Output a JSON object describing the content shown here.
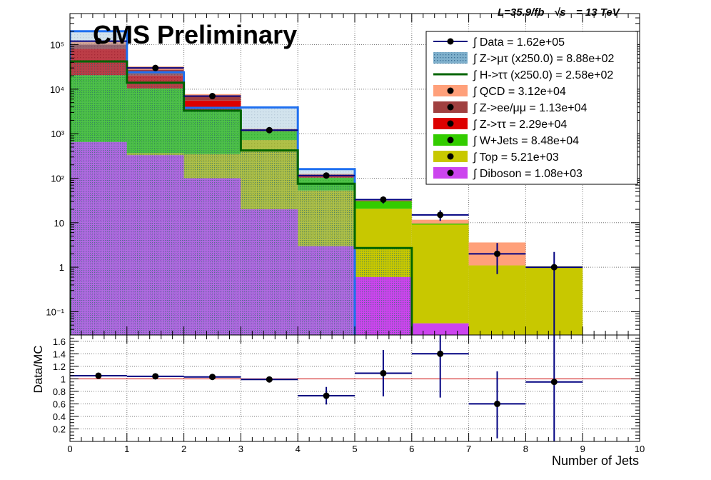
{
  "header": {
    "cms": "CMS Preliminary",
    "lumi": "L=35.9/fb",
    "sqrt": "√s",
    "energy": "= 13 TeV"
  },
  "chart_data": [
    {
      "type": "bar",
      "subtype": "stacked-histogram",
      "y_scale": "log",
      "ylim": [
        0.03,
        500000
      ],
      "xlim": [
        0,
        10
      ],
      "bins": [
        0,
        1,
        2,
        3,
        4,
        5,
        6,
        7,
        8,
        9,
        10
      ],
      "grid": true,
      "legend_position": "top-right",
      "ytick_labels": [
        {
          "value": 0.1,
          "label": "10⁻¹"
        },
        {
          "value": 1,
          "label": "1"
        },
        {
          "value": 10,
          "label": "10"
        },
        {
          "value": 100,
          "label": "10²"
        },
        {
          "value": 1000,
          "label": "10³"
        },
        {
          "value": 10000,
          "label": "10⁴"
        },
        {
          "value": 100000,
          "label": "10⁵"
        }
      ],
      "stack_order": [
        "Diboson",
        "Top",
        "W+Jets",
        "Z->ττ",
        "Z->ee/μμ",
        "QCD"
      ],
      "stack": [
        {
          "name": "Diboson",
          "color": "#cc44ee",
          "values": [
            650,
            330,
            100,
            20,
            3,
            0.6,
            0.055,
            0,
            0,
            0
          ]
        },
        {
          "name": "Top",
          "color": "#c8c800",
          "values": [
            2,
            35,
            250,
            700,
            50,
            20,
            9,
            1.1,
            1.05,
            0
          ]
        },
        {
          "name": "W+Jets",
          "color": "#33cc00",
          "values": [
            20000,
            10000,
            3000,
            420,
            50,
            10,
            0.5,
            0,
            0,
            0
          ]
        },
        {
          "name": "Z->ττ",
          "color": "#dd0000",
          "values": [
            60000,
            10000,
            2200,
            100,
            10,
            0.5,
            0.1,
            0,
            0,
            0
          ]
        },
        {
          "name": "Z->ee/μμ",
          "color": "#a04040",
          "values": [
            20000,
            7000,
            1200,
            20,
            2,
            0.3,
            0,
            0,
            0,
            0
          ]
        },
        {
          "name": "QCD",
          "color": "#ffa07a",
          "values": [
            15000,
            5000,
            1000,
            30,
            10,
            2,
            2,
            2.5,
            0,
            0
          ]
        }
      ],
      "signals": [
        {
          "name": "Z->μτ (x250.0)",
          "color": "#1e6ff0",
          "fill": "#6aa0c0",
          "values": [
            200000,
            24000,
            3800,
            3900,
            160,
            0,
            0,
            0,
            0,
            0
          ]
        },
        {
          "name": "H->ττ (x250.0)",
          "color": "#006400",
          "fill": "#4a8a80",
          "values": [
            42000,
            14000,
            3300,
            420,
            75,
            2.7,
            0,
            0,
            0,
            0
          ]
        }
      ],
      "data": {
        "name": "Data",
        "x": [
          0.5,
          1.5,
          2.5,
          3.5,
          4.5,
          5.5,
          6.5,
          7.5,
          8.5
        ],
        "y": [
          120000,
          30000,
          7000,
          1200,
          115,
          33,
          15,
          2,
          1
        ],
        "err_lo": [
          350,
          170,
          85,
          35,
          11,
          6,
          4,
          1.3,
          0.99
        ],
        "err_hi": [
          350,
          170,
          85,
          35,
          11,
          6,
          4,
          1.5,
          1.2
        ]
      },
      "legend": [
        {
          "key": "data",
          "label": "∫ Data = 1.62e+05",
          "style": "marker",
          "color": "#000000"
        },
        {
          "key": "zmt",
          "label": "∫ Z->μτ (x250.0) = 8.88e+02",
          "style": "hatch",
          "color": "#6aa0c0"
        },
        {
          "key": "htt",
          "label": "∫ H->ττ (x250.0) = 2.58e+02",
          "style": "line",
          "color": "#006400"
        },
        {
          "key": "qcd",
          "label": "∫ QCD = 3.12e+04",
          "style": "fill",
          "color": "#ffa07a"
        },
        {
          "key": "zll",
          "label": "∫ Z->ee/μμ = 1.13e+04",
          "style": "fill",
          "color": "#a04040"
        },
        {
          "key": "ztt",
          "label": "∫ Z->ττ = 2.29e+04",
          "style": "fill",
          "color": "#dd0000"
        },
        {
          "key": "wjets",
          "label": "∫ W+Jets = 8.48e+04",
          "style": "fill",
          "color": "#33cc00"
        },
        {
          "key": "top",
          "label": "∫ Top = 5.21e+03",
          "style": "fill",
          "color": "#c8c800"
        },
        {
          "key": "diboson",
          "label": "∫ Diboson = 1.08e+03",
          "style": "fill",
          "color": "#cc44ee"
        }
      ]
    },
    {
      "type": "scatter",
      "subtype": "ratio",
      "ylabel": "Data/MC",
      "xlabel": "Number of Jets",
      "xlim": [
        0,
        10
      ],
      "ylim": [
        0,
        1.7
      ],
      "grid": true,
      "reference_line": 1,
      "xticks": [
        "0",
        "1",
        "2",
        "3",
        "4",
        "5",
        "6",
        "7",
        "8",
        "9",
        "10"
      ],
      "yticks": [
        "0.2",
        "0.4",
        "0.6",
        "0.8",
        "1",
        "1.2",
        "1.4",
        "1.6"
      ],
      "x": [
        0.5,
        1.5,
        2.5,
        3.5,
        4.5,
        5.5,
        6.5,
        7.5,
        8.5
      ],
      "y": [
        1.05,
        1.04,
        1.03,
        0.99,
        0.73,
        1.09,
        1.4,
        0.6,
        0.95
      ],
      "err_lo": [
        0.01,
        0.01,
        0.015,
        0.03,
        0.14,
        0.37,
        0.7,
        0.55,
        0.95
      ],
      "err_hi": [
        0.01,
        0.01,
        0.015,
        0.03,
        0.14,
        0.37,
        0.7,
        0.52,
        0.95
      ]
    }
  ]
}
